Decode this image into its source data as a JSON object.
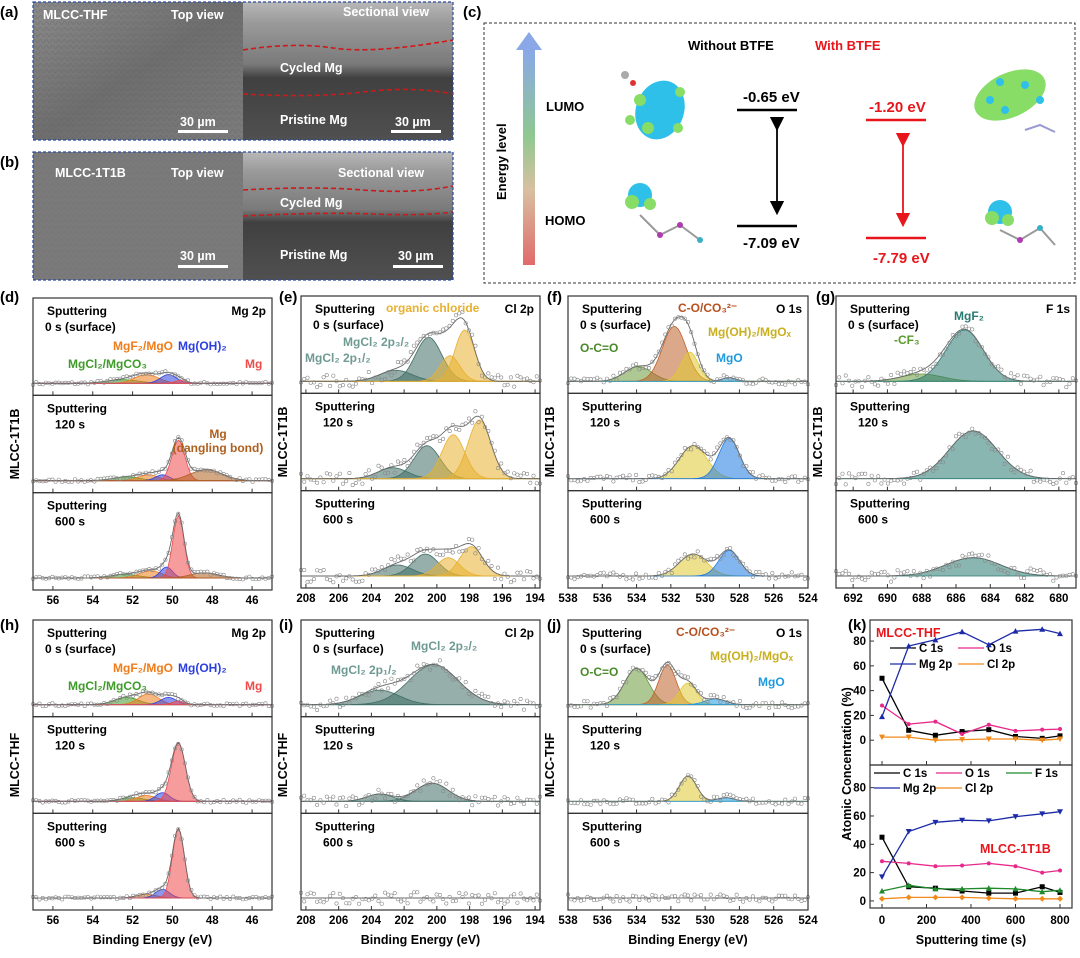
{
  "panel_letters": {
    "a": "(a)",
    "b": "(b)",
    "c": "(c)",
    "d": "(d)",
    "e": "(e)",
    "f": "(f)",
    "g": "(g)",
    "h": "(h)",
    "i": "(i)",
    "j": "(j)",
    "k": "(k)"
  },
  "sem": {
    "a": {
      "sample": "MLCC-THF",
      "top_view": "Top view",
      "section_view": "Sectional view",
      "cycled": "Cycled Mg",
      "pristine": "Pristine Mg",
      "scale_left": "30 µm",
      "scale_right": "30 µm"
    },
    "b": {
      "sample": "MLCC-1T1B",
      "top_view": "Top view",
      "section_view": "Sectional view",
      "cycled": "Cycled Mg",
      "pristine": "Pristine Mg",
      "scale_left": "30 µm",
      "scale_right": "30 µm"
    }
  },
  "energy_diagram": {
    "axis_label": "Energy level",
    "lumo": "LUMO",
    "homo": "HOMO",
    "without": {
      "title": "Without BTFE",
      "lumo": "-0.65 eV",
      "homo": "-7.09 eV",
      "color": "#000000"
    },
    "with": {
      "title": "With BTFE",
      "lumo": "-1.20 eV",
      "homo": "-7.79 eV",
      "color": "#e8161b"
    }
  },
  "xlabel": "Binding Energy (eV)",
  "xps_panels": [
    {
      "id": "d",
      "sample": "MLCC-1T1B",
      "core": "Mg 2p",
      "xlim": [
        57,
        45
      ],
      "ticks": [
        56,
        54,
        52,
        50,
        48,
        46
      ],
      "annotations": [
        {
          "text": "MgF₂/MgO",
          "color": "#f07c1a"
        },
        {
          "text": "Mg(OH)₂",
          "color": "#2b3fe0"
        },
        {
          "text": "MgCl₂/MgCO₃",
          "color": "#3f9b2a"
        },
        {
          "text": "Mg",
          "color": "#f04a4a"
        },
        {
          "text": "Mg",
          "color": "#b0601e"
        },
        {
          "text": "(dangling bond)",
          "color": "#b0601e"
        }
      ],
      "subs": [
        {
          "label": [
            "Sputtering",
            "0 s (surface)"
          ],
          "peaks": [
            {
              "c": 52.5,
              "h": 0.05,
              "w": 0.8,
              "color": "#3f9b2a"
            },
            {
              "c": 51.3,
              "h": 0.12,
              "w": 0.6,
              "color": "#f07c1a"
            },
            {
              "c": 50.2,
              "h": 0.12,
              "w": 0.4,
              "color": "#2b3fe0"
            },
            {
              "c": 49.6,
              "h": 0.04,
              "w": 0.3,
              "color": "#f04a4a"
            }
          ]
        },
        {
          "label": [
            "Sputtering",
            "120 s"
          ],
          "peaks": [
            {
              "c": 52.3,
              "h": 0.05,
              "w": 0.7,
              "color": "#3f9b2a"
            },
            {
              "c": 51.2,
              "h": 0.08,
              "w": 0.5,
              "color": "#f07c1a"
            },
            {
              "c": 50.5,
              "h": 0.08,
              "w": 0.35,
              "color": "#2b3fe0"
            },
            {
              "c": 49.7,
              "h": 0.55,
              "w": 0.33,
              "color": "#f04a4a"
            },
            {
              "c": 48.3,
              "h": 0.15,
              "w": 0.8,
              "color": "#b0601e"
            }
          ]
        },
        {
          "label": [
            "Sputtering",
            "600 s"
          ],
          "peaks": [
            {
              "c": 52.4,
              "h": 0.05,
              "w": 0.7,
              "color": "#3f9b2a"
            },
            {
              "c": 51.1,
              "h": 0.1,
              "w": 0.55,
              "color": "#f07c1a"
            },
            {
              "c": 50.3,
              "h": 0.15,
              "w": 0.3,
              "color": "#2b3fe0"
            },
            {
              "c": 49.7,
              "h": 0.85,
              "w": 0.28,
              "color": "#f04a4a"
            },
            {
              "c": 48.4,
              "h": 0.07,
              "w": 0.7,
              "color": "#b0601e"
            }
          ]
        }
      ]
    },
    {
      "id": "e",
      "sample": "MLCC-1T1B",
      "core": "Cl 2p",
      "xlim": [
        208.3,
        193.7
      ],
      "ticks": [
        208,
        206,
        204,
        202,
        200,
        198,
        196,
        194
      ],
      "annotations": [
        {
          "text": "organic chloride",
          "color": "#e8b030"
        },
        {
          "text": "MgCl₂ 2p₃/₂",
          "color": "#6e9a92"
        },
        {
          "text": "MgCl₂ 2p₁/₂",
          "color": "#6e9a92"
        }
      ],
      "subs": [
        {
          "label": [
            "Sputtering",
            "0 s (surface)"
          ],
          "peaks": [
            {
              "c": 202.5,
              "h": 0.15,
              "w": 1.0,
              "color": "#3f6e66"
            },
            {
              "c": 200.5,
              "h": 0.6,
              "w": 0.8,
              "color": "#3f6e66"
            },
            {
              "c": 199.2,
              "h": 0.35,
              "w": 0.6,
              "color": "#e8b030"
            },
            {
              "c": 198.3,
              "h": 0.7,
              "w": 0.6,
              "color": "#e8b030"
            }
          ]
        },
        {
          "label": [
            "Sputtering",
            "120 s"
          ],
          "peaks": [
            {
              "c": 202.7,
              "h": 0.15,
              "w": 0.9,
              "color": "#3f6e66"
            },
            {
              "c": 200.6,
              "h": 0.45,
              "w": 0.8,
              "color": "#3f6e66"
            },
            {
              "c": 199.0,
              "h": 0.6,
              "w": 0.7,
              "color": "#e8b030"
            },
            {
              "c": 197.4,
              "h": 0.8,
              "w": 0.7,
              "color": "#e8b030"
            }
          ]
        },
        {
          "label": [
            "Sputtering",
            "600 s"
          ],
          "peaks": [
            {
              "c": 202.4,
              "h": 0.15,
              "w": 0.9,
              "color": "#3f6e66"
            },
            {
              "c": 200.7,
              "h": 0.3,
              "w": 0.8,
              "color": "#3f6e66"
            },
            {
              "c": 199.3,
              "h": 0.25,
              "w": 0.7,
              "color": "#e8b030"
            },
            {
              "c": 197.9,
              "h": 0.4,
              "w": 0.7,
              "color": "#e8b030"
            }
          ]
        }
      ]
    },
    {
      "id": "f",
      "sample": "MLCC-1T1B",
      "core": "O 1s",
      "xlim": [
        538,
        524
      ],
      "ticks": [
        538,
        536,
        534,
        532,
        530,
        528,
        526,
        524
      ],
      "annotations": [
        {
          "text": "C-O/CO₃²⁻",
          "color": "#b8501e"
        },
        {
          "text": "Mg(OH)₂/MgOₓ",
          "color": "#c8b020"
        },
        {
          "text": "O-C=O",
          "color": "#4a8a2a"
        },
        {
          "text": "MgO",
          "color": "#1e9ae0"
        }
      ],
      "subs": [
        {
          "label": [
            "Sputtering",
            "0 s (surface)"
          ],
          "peaks": [
            {
              "c": 533.9,
              "h": 0.2,
              "w": 0.8,
              "color": "#6a9a3a"
            },
            {
              "c": 531.8,
              "h": 0.75,
              "w": 0.7,
              "color": "#c0602a"
            },
            {
              "c": 530.9,
              "h": 0.4,
              "w": 0.5,
              "color": "#e0c830"
            },
            {
              "c": 528.6,
              "h": 0.05,
              "w": 0.4,
              "color": "#1e9ae0"
            }
          ]
        },
        {
          "label": [
            "Sputtering",
            "120 s"
          ],
          "peaks": [
            {
              "c": 530.7,
              "h": 0.45,
              "w": 0.8,
              "color": "#e0c830"
            },
            {
              "c": 528.6,
              "h": 0.55,
              "w": 0.6,
              "color": "#1e7ae0"
            }
          ]
        },
        {
          "label": [
            "Sputtering",
            "600 s"
          ],
          "peaks": [
            {
              "c": 530.7,
              "h": 0.3,
              "w": 0.8,
              "color": "#e0c830"
            },
            {
              "c": 528.6,
              "h": 0.35,
              "w": 0.6,
              "color": "#1e7ae0"
            }
          ]
        }
      ]
    },
    {
      "id": "g",
      "sample": "MLCC-1T1B",
      "core": "F 1s",
      "xlim": [
        693,
        679
      ],
      "ticks": [
        692,
        690,
        688,
        686,
        684,
        682,
        680
      ],
      "annotations": [
        {
          "text": "MgF₂",
          "color": "#2a7a72"
        },
        {
          "text": "-CF₃",
          "color": "#5a9a2a"
        }
      ],
      "subs": [
        {
          "label": [
            "Sputtering",
            "0 s (surface)"
          ],
          "peaks": [
            {
              "c": 688.0,
              "h": 0.1,
              "w": 1.2,
              "color": "#6a9a3a"
            },
            {
              "c": 685.5,
              "h": 0.7,
              "w": 1.1,
              "color": "#2a7a72"
            }
          ]
        },
        {
          "label": [
            "Sputtering",
            "120 s"
          ],
          "peaks": [
            {
              "c": 685.0,
              "h": 0.65,
              "w": 1.4,
              "color": "#2a7a72"
            }
          ]
        },
        {
          "label": [
            "Sputtering",
            "600 s"
          ],
          "peaks": [
            {
              "c": 685.0,
              "h": 0.25,
              "w": 1.6,
              "color": "#2a7a72"
            }
          ]
        }
      ]
    },
    {
      "id": "h",
      "sample": "MLCC-THF",
      "core": "Mg 2p",
      "xlim": [
        57,
        45
      ],
      "ticks": [
        56,
        54,
        52,
        50,
        48,
        46
      ],
      "annotations": [
        {
          "text": "MgF₂/MgO",
          "color": "#f07c1a"
        },
        {
          "text": "Mg(OH)₂",
          "color": "#2b3fe0"
        },
        {
          "text": "MgCl₂/MgCO₃",
          "color": "#3f9b2a"
        },
        {
          "text": "Mg",
          "color": "#f04a4a"
        }
      ],
      "subs": [
        {
          "label": [
            "Sputtering",
            "0 s (surface)"
          ],
          "peaks": [
            {
              "c": 52.3,
              "h": 0.1,
              "w": 0.6,
              "color": "#3f9b2a"
            },
            {
              "c": 51.2,
              "h": 0.15,
              "w": 0.5,
              "color": "#f07c1a"
            },
            {
              "c": 50.2,
              "h": 0.1,
              "w": 0.4,
              "color": "#2b3fe0"
            },
            {
              "c": 49.7,
              "h": 0.05,
              "w": 0.3,
              "color": "#f04a4a"
            }
          ]
        },
        {
          "label": [
            "Sputtering",
            "120 s"
          ],
          "peaks": [
            {
              "c": 52.0,
              "h": 0.05,
              "w": 0.6,
              "color": "#3f9b2a"
            },
            {
              "c": 51.3,
              "h": 0.08,
              "w": 0.5,
              "color": "#f07c1a"
            },
            {
              "c": 50.5,
              "h": 0.12,
              "w": 0.35,
              "color": "#2b3fe0"
            },
            {
              "c": 49.7,
              "h": 0.8,
              "w": 0.35,
              "color": "#f04a4a"
            }
          ]
        },
        {
          "label": [
            "Sputtering",
            "600 s"
          ],
          "peaks": [
            {
              "c": 51.3,
              "h": 0.05,
              "w": 0.5,
              "color": "#f07c1a"
            },
            {
              "c": 50.5,
              "h": 0.12,
              "w": 0.35,
              "color": "#2b3fe0"
            },
            {
              "c": 49.7,
              "h": 0.95,
              "w": 0.3,
              "color": "#f04a4a"
            }
          ]
        }
      ]
    },
    {
      "id": "i",
      "sample": "MLCC-THF",
      "core": "Cl 2p",
      "xlim": [
        208.3,
        193.7
      ],
      "ticks": [
        208,
        206,
        204,
        202,
        200,
        198,
        196,
        194
      ],
      "annotations": [
        {
          "text": "MgCl₂ 2p₃/₂",
          "color": "#6e9a92"
        },
        {
          "text": "MgCl₂ 2p₁/₂",
          "color": "#6e9a92"
        }
      ],
      "subs": [
        {
          "label": [
            "Sputtering",
            "0 s (surface)"
          ],
          "peaks": [
            {
              "c": 203.5,
              "h": 0.2,
              "w": 1.2,
              "color": "#3f6e66"
            },
            {
              "c": 200.2,
              "h": 0.55,
              "w": 1.5,
              "color": "#3f6e66"
            }
          ]
        },
        {
          "label": [
            "Sputtering",
            "120 s"
          ],
          "peaks": [
            {
              "c": 203.5,
              "h": 0.1,
              "w": 0.8,
              "color": "#3f6e66"
            },
            {
              "c": 200.3,
              "h": 0.25,
              "w": 1.0,
              "color": "#3f6e66"
            }
          ]
        },
        {
          "label": [
            "Sputtering",
            "600 s"
          ],
          "peaks": []
        }
      ]
    },
    {
      "id": "j",
      "sample": "MLCC-THF",
      "core": "O 1s",
      "xlim": [
        538,
        524
      ],
      "ticks": [
        538,
        536,
        534,
        532,
        530,
        528,
        526,
        524
      ],
      "annotations": [
        {
          "text": "C-O/CO₃²⁻",
          "color": "#b8501e"
        },
        {
          "text": "Mg(OH)₂/MgOₓ",
          "color": "#c8b020"
        },
        {
          "text": "O-C=O",
          "color": "#4a8a2a"
        },
        {
          "text": "MgO",
          "color": "#1e9ae0"
        }
      ],
      "subs": [
        {
          "label": [
            "Sputtering",
            "0 s (surface)"
          ],
          "peaks": [
            {
              "c": 534.0,
              "h": 0.5,
              "w": 0.7,
              "color": "#6a9a3a"
            },
            {
              "c": 532.2,
              "h": 0.55,
              "w": 0.5,
              "color": "#c0602a"
            },
            {
              "c": 531.0,
              "h": 0.3,
              "w": 0.5,
              "color": "#e0c830"
            },
            {
              "c": 529.4,
              "h": 0.08,
              "w": 0.6,
              "color": "#1e9ae0"
            }
          ]
        },
        {
          "label": [
            "Sputtering",
            "120 s"
          ],
          "peaks": [
            {
              "c": 531.0,
              "h": 0.35,
              "w": 0.5,
              "color": "#e0c830"
            },
            {
              "c": 528.8,
              "h": 0.05,
              "w": 0.5,
              "color": "#1e9ae0"
            }
          ]
        },
        {
          "label": [
            "Sputtering",
            "600 s"
          ],
          "peaks": []
        }
      ]
    }
  ],
  "chart_data": {
    "type": "line",
    "xlabel": "Sputtering time (s)",
    "ylabel": "Atomic Concentration (%)",
    "xticks": [
      0,
      200,
      400,
      600,
      800
    ],
    "x": [
      0,
      120,
      240,
      360,
      480,
      600,
      720,
      800
    ],
    "panels": [
      {
        "title": "MLCC-THF",
        "title_color": "#e8161b",
        "ylim": [
          -20,
          97
        ],
        "yticks": [
          0,
          20,
          40,
          60,
          80
        ],
        "series": [
          {
            "name": "C 1s",
            "color": "#000000",
            "marker": "square",
            "values": [
              50,
              8,
              4,
              7,
              8.5,
              3,
              1.5,
              3.5
            ]
          },
          {
            "name": "O 1s",
            "color": "#e8288a",
            "marker": "circle",
            "values": [
              28,
              13,
              15,
              5,
              12.5,
              7.5,
              8.5,
              9
            ]
          },
          {
            "name": "Mg 2p",
            "color": "#1c2aa8",
            "marker": "triangle-up",
            "values": [
              19,
              76,
              81,
              87.5,
              77,
              88,
              89.5,
              86
            ]
          },
          {
            "name": "Cl 2p",
            "color": "#f08a1a",
            "marker": "triangle-down",
            "values": [
              2.5,
              2.5,
              0,
              0.5,
              1,
              1,
              0,
              1
            ]
          }
        ]
      },
      {
        "title": "MLCC-1T1B",
        "title_color": "#e8161b",
        "ylim": [
          -5,
          96
        ],
        "yticks": [
          0,
          20,
          40,
          60,
          80
        ],
        "series": [
          {
            "name": "C 1s",
            "color": "#000000",
            "marker": "square",
            "values": [
              45,
              10,
              9,
              7,
              5.5,
              5.5,
              10,
              6
            ]
          },
          {
            "name": "O 1s",
            "color": "#e8288a",
            "marker": "circle",
            "values": [
              28,
              26.5,
              24.5,
              25,
              26.5,
              24.5,
              20,
              21.5
            ]
          },
          {
            "name": "F 1s",
            "color": "#1e8a2a",
            "marker": "triangle-up",
            "values": [
              7,
              11,
              8.5,
              8.5,
              9,
              8.5,
              6.5,
              7.5
            ]
          },
          {
            "name": "Mg 2p",
            "color": "#1c2aa8",
            "marker": "triangle-down",
            "values": [
              17,
              49,
              55.5,
              57,
              56.5,
              59.5,
              61.5,
              63
            ]
          },
          {
            "name": "Cl 2p",
            "color": "#f08a1a",
            "marker": "diamond",
            "values": [
              1.5,
              2.5,
              2.5,
              2.5,
              2,
              1.5,
              1.5,
              1.5
            ]
          }
        ]
      }
    ]
  }
}
